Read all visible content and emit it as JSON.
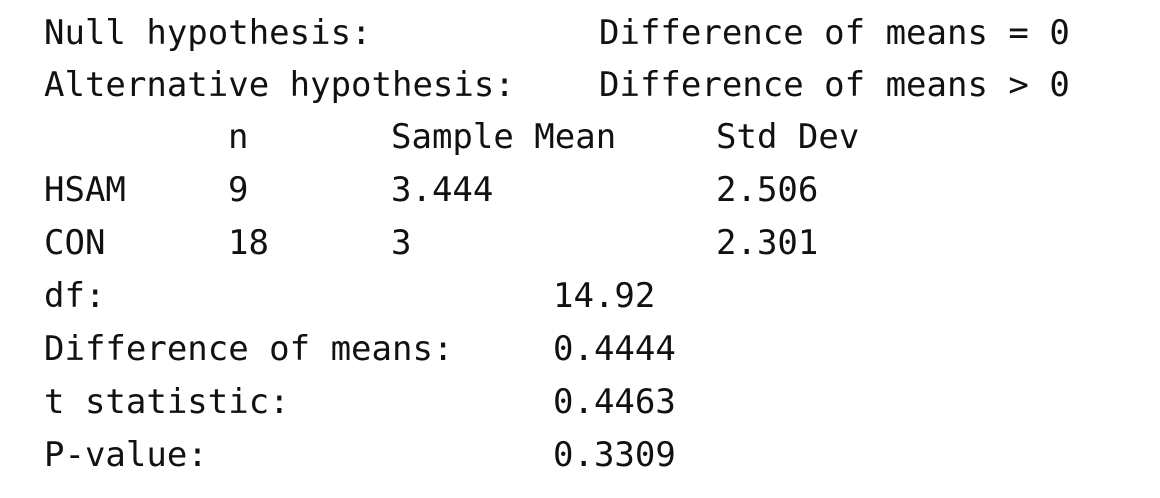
{
  "hypotheses": {
    "null_label": "Null hypothesis:",
    "null_value": "Difference of means = 0",
    "alt_label": "Alternative hypothesis:",
    "alt_value": "Difference of means > 0"
  },
  "table": {
    "headers": [
      "n",
      "Sample Mean",
      "Std Dev"
    ],
    "rows": [
      {
        "group": "HSAM",
        "n": "9",
        "mean": "3.444",
        "sd": "2.506"
      },
      {
        "group": "CON",
        "n": "18",
        "mean": "3",
        "sd": "2.301"
      }
    ]
  },
  "stats": [
    {
      "label": "df:",
      "value": "14.92"
    },
    {
      "label": "Difference of means:",
      "value": "0.4444"
    },
    {
      "label": "t statistic:",
      "value": "0.4463"
    },
    {
      "label": "P-value:",
      "value": "0.3309"
    }
  ]
}
